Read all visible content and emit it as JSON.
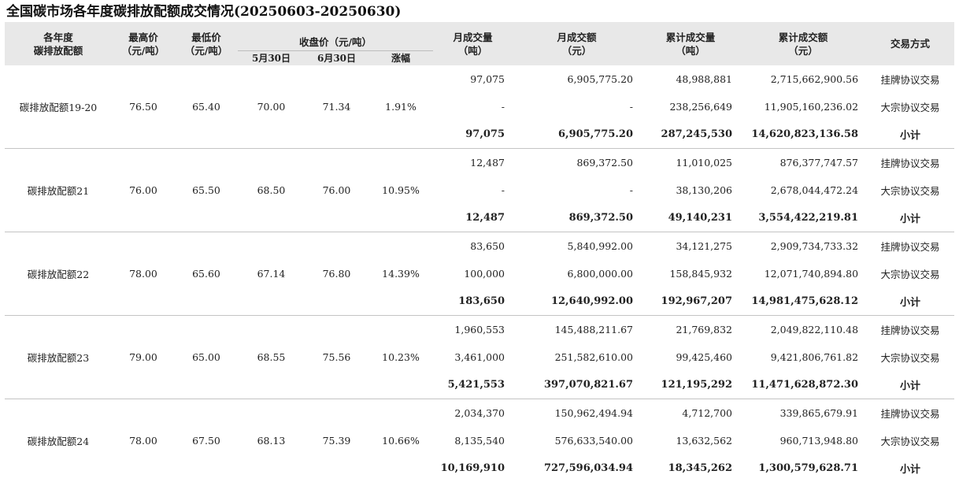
{
  "title": "全国碳市场各年度碳排放配额成交情况(20250603-20250630)",
  "headers": {
    "year": [
      "各年度",
      "碳排放配额"
    ],
    "high": [
      "最高价",
      "（元/吨）"
    ],
    "low": [
      "最低价",
      "（元/吨）"
    ],
    "close": "收盘价（元/吨）",
    "close_may": "5月30日",
    "close_jun": "6月30日",
    "change": "涨幅",
    "mvol": [
      "月成交量",
      "（吨）"
    ],
    "mamt": [
      "月成交额",
      "（元）"
    ],
    "cvol": [
      "累计成交量",
      "（吨）"
    ],
    "camt": [
      "累计成交额",
      "（元）"
    ],
    "method": "交易方式"
  },
  "groups": [
    {
      "name": "碳排放配额19-20",
      "high": "76.50",
      "low": "65.40",
      "close_may": "70.00",
      "close_jun": "71.34",
      "change": "1.91%",
      "rows": [
        {
          "mvol": "97,075",
          "mamt": "6,905,775.20",
          "cvol": "48,988,881",
          "camt": "2,715,662,900.56",
          "method": "挂牌协议交易"
        },
        {
          "mvol": "-",
          "mamt": "-",
          "cvol": "238,256,649",
          "camt": "11,905,160,236.02",
          "method": "大宗协议交易"
        },
        {
          "mvol": "97,075",
          "mamt": "6,905,775.20",
          "cvol": "287,245,530",
          "camt": "14,620,823,136.58",
          "method": "小计"
        }
      ]
    },
    {
      "name": "碳排放配额21",
      "high": "76.00",
      "low": "65.50",
      "close_may": "68.50",
      "close_jun": "76.00",
      "change": "10.95%",
      "rows": [
        {
          "mvol": "12,487",
          "mamt": "869,372.50",
          "cvol": "11,010,025",
          "camt": "876,377,747.57",
          "method": "挂牌协议交易"
        },
        {
          "mvol": "-",
          "mamt": "-",
          "cvol": "38,130,206",
          "camt": "2,678,044,472.24",
          "method": "大宗协议交易"
        },
        {
          "mvol": "12,487",
          "mamt": "869,372.50",
          "cvol": "49,140,231",
          "camt": "3,554,422,219.81",
          "method": "小计"
        }
      ]
    },
    {
      "name": "碳排放配额22",
      "high": "78.00",
      "low": "65.60",
      "close_may": "67.14",
      "close_jun": "76.80",
      "change": "14.39%",
      "rows": [
        {
          "mvol": "83,650",
          "mamt": "5,840,992.00",
          "cvol": "34,121,275",
          "camt": "2,909,734,733.32",
          "method": "挂牌协议交易"
        },
        {
          "mvol": "100,000",
          "mamt": "6,800,000.00",
          "cvol": "158,845,932",
          "camt": "12,071,740,894.80",
          "method": "大宗协议交易"
        },
        {
          "mvol": "183,650",
          "mamt": "12,640,992.00",
          "cvol": "192,967,207",
          "camt": "14,981,475,628.12",
          "method": "小计"
        }
      ]
    },
    {
      "name": "碳排放配额23",
      "high": "79.00",
      "low": "65.00",
      "close_may": "68.55",
      "close_jun": "75.56",
      "change": "10.23%",
      "rows": [
        {
          "mvol": "1,960,553",
          "mamt": "145,488,211.67",
          "cvol": "21,769,832",
          "camt": "2,049,822,110.48",
          "method": "挂牌协议交易"
        },
        {
          "mvol": "3,461,000",
          "mamt": "251,582,610.00",
          "cvol": "99,425,460",
          "camt": "9,421,806,761.82",
          "method": "大宗协议交易"
        },
        {
          "mvol": "5,421,553",
          "mamt": "397,070,821.67",
          "cvol": "121,195,292",
          "camt": "11,471,628,872.30",
          "method": "小计"
        }
      ]
    },
    {
      "name": "碳排放配额24",
      "high": "78.00",
      "low": "67.50",
      "close_may": "68.13",
      "close_jun": "75.39",
      "change": "10.66%",
      "rows": [
        {
          "mvol": "2,034,370",
          "mamt": "150,962,494.94",
          "cvol": "4,712,700",
          "camt": "339,865,679.91",
          "method": "挂牌协议交易"
        },
        {
          "mvol": "8,135,540",
          "mamt": "576,633,540.00",
          "cvol": "13,632,562",
          "camt": "960,713,948.80",
          "method": "大宗协议交易"
        },
        {
          "mvol": "10,169,910",
          "mamt": "727,596,034.94",
          "cvol": "18,345,262",
          "camt": "1,300,579,628.71",
          "method": "小计"
        }
      ]
    }
  ]
}
